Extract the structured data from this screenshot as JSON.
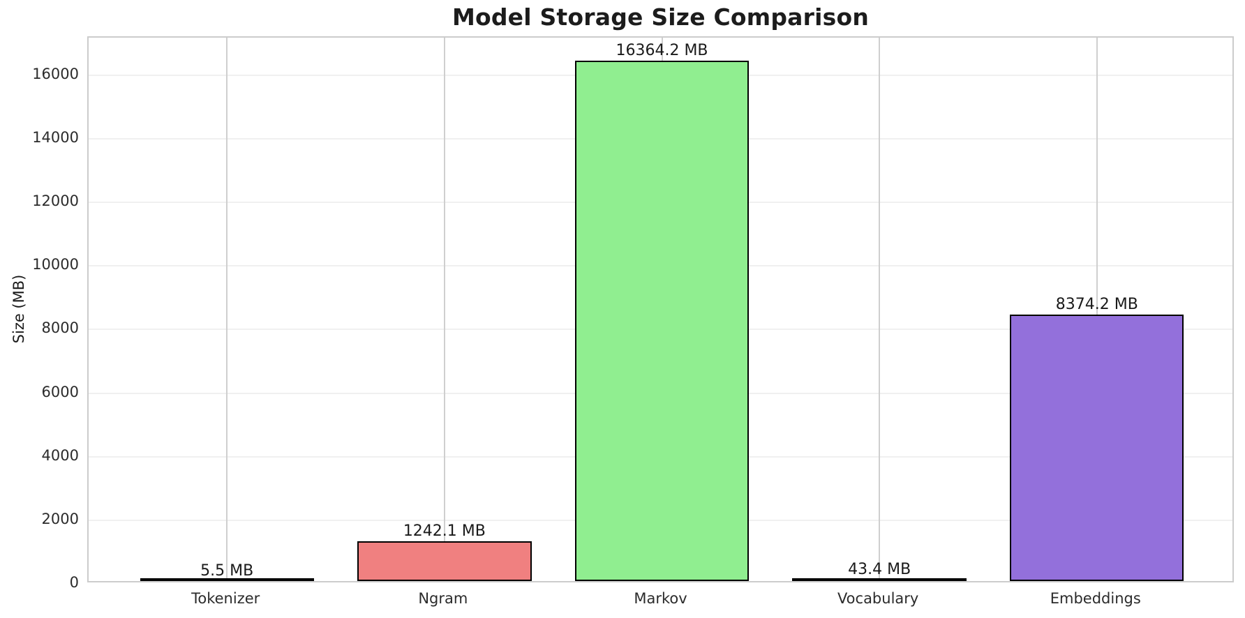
{
  "appearance": {
    "background_color": "#ffffff",
    "spine_color": "#cccccc",
    "hgrid_color": "#f0f0f0",
    "vgrid_color": "#cfcfcf",
    "bar_edge_color": "#000000",
    "title_color": "#1c1c1c",
    "tick_color": "#2b2b2b"
  },
  "chart_data": {
    "type": "bar",
    "title": "Model Storage Size Comparison",
    "xlabel": "",
    "ylabel": "Size (MB)",
    "categories": [
      "Tokenizer",
      "Ngram",
      "Markov",
      "Vocabulary",
      "Embeddings"
    ],
    "values": [
      5.5,
      1242.1,
      16364.2,
      43.4,
      8374.2
    ],
    "bar_value_labels": [
      "5.5 MB",
      "1242.1 MB",
      "16364.2 MB",
      "43.4 MB",
      "8374.2 MB"
    ],
    "bar_fill_colors": [
      null,
      "#f08080",
      "#90ee90",
      null,
      "#9370db"
    ],
    "yticks": [
      0,
      2000,
      4000,
      6000,
      8000,
      10000,
      12000,
      14000,
      16000
    ],
    "ylim": [
      0,
      17182
    ],
    "grid": true,
    "legend_position": "none"
  }
}
